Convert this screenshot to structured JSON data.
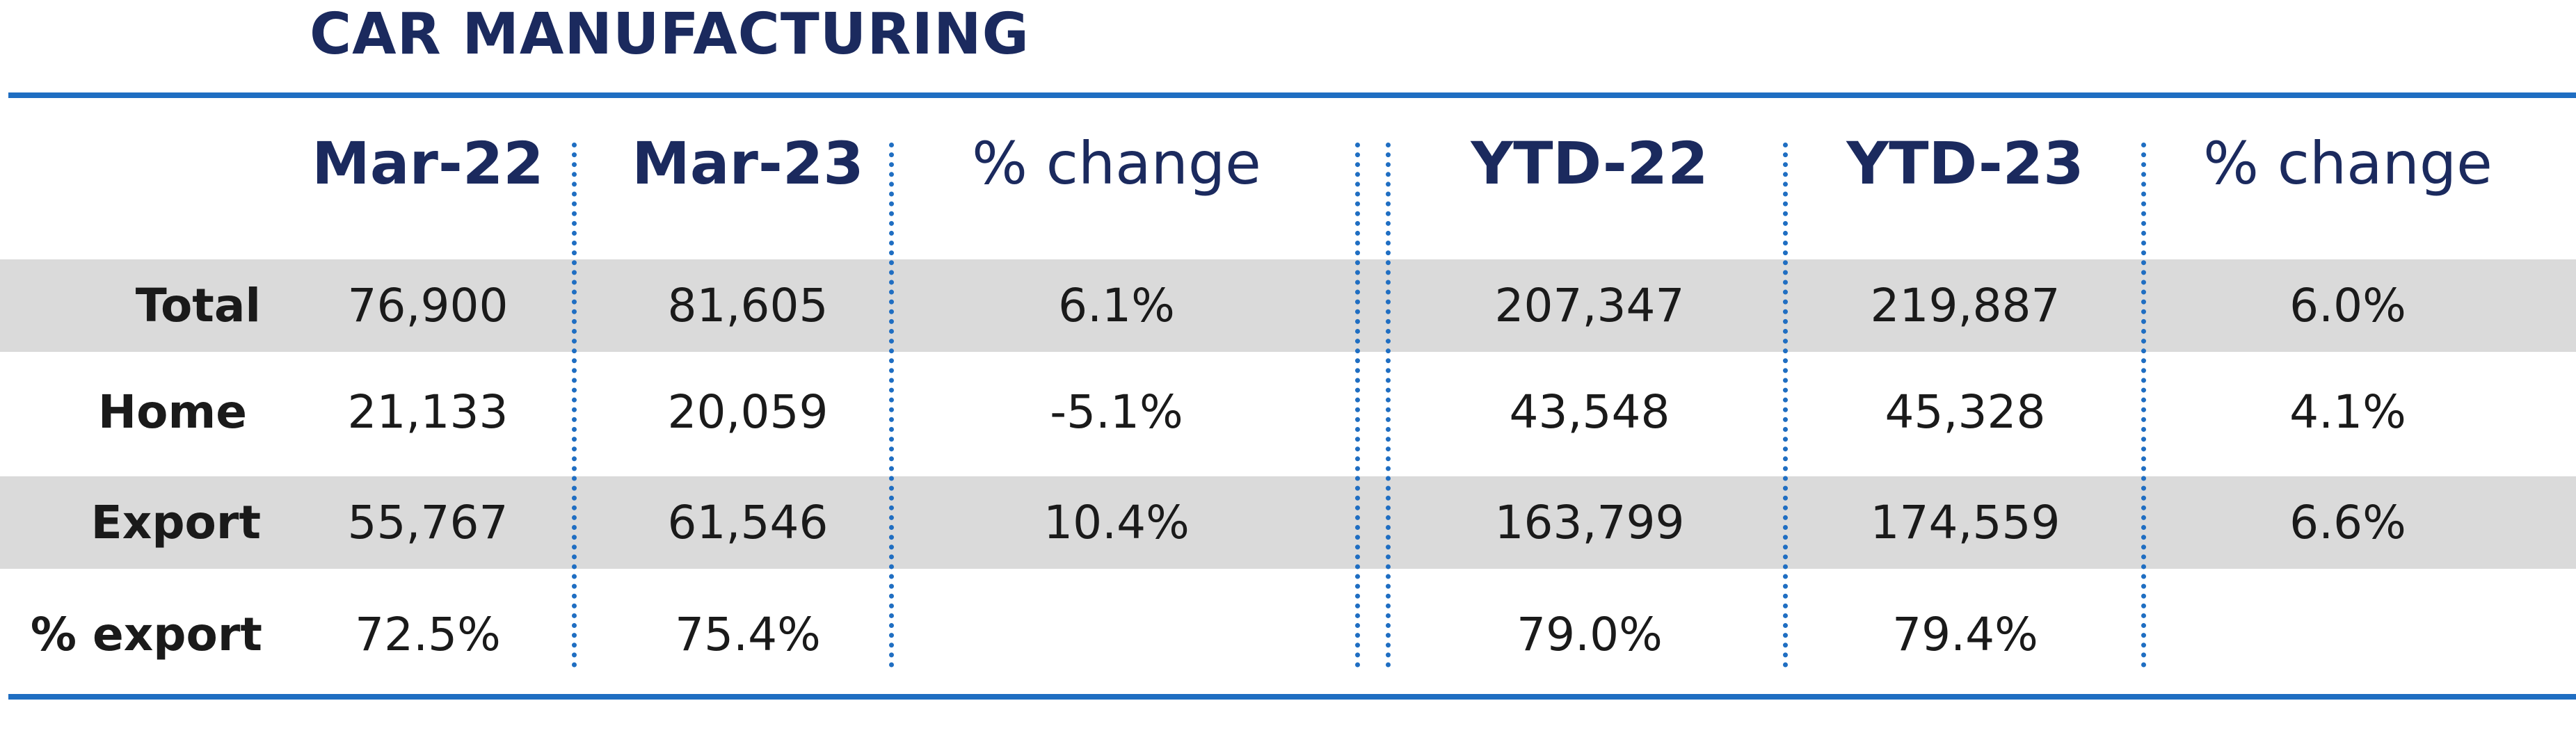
{
  "title": "CAR MANUFACTURING",
  "chart_data": {
    "type": "table",
    "title": "CAR MANUFACTURING",
    "columns": [
      "Mar-22",
      "Mar-23",
      "% change",
      "YTD-22",
      "YTD-23",
      "% change"
    ],
    "rows": [
      {
        "label": "Total",
        "cells": [
          "76,900",
          "81,605",
          "6.1%",
          "207,347",
          "219,887",
          "6.0%"
        ]
      },
      {
        "label": "Home",
        "cells": [
          "21,133",
          "20,059",
          "-5.1%",
          "43,548",
          "45,328",
          "4.1%"
        ]
      },
      {
        "label": "Export",
        "cells": [
          "55,767",
          "61,546",
          "10.4%",
          "163,799",
          "174,559",
          "6.6%"
        ]
      },
      {
        "label": "% export",
        "cells": [
          "72.5%",
          "75.4%",
          "",
          "79.0%",
          "79.4%",
          ""
        ]
      }
    ],
    "shaded_rows": [
      "Total",
      "Export"
    ],
    "colors": {
      "header_text": "#1b2a5e",
      "rule": "#1f6ec2",
      "row_shade": "#dadada"
    }
  }
}
